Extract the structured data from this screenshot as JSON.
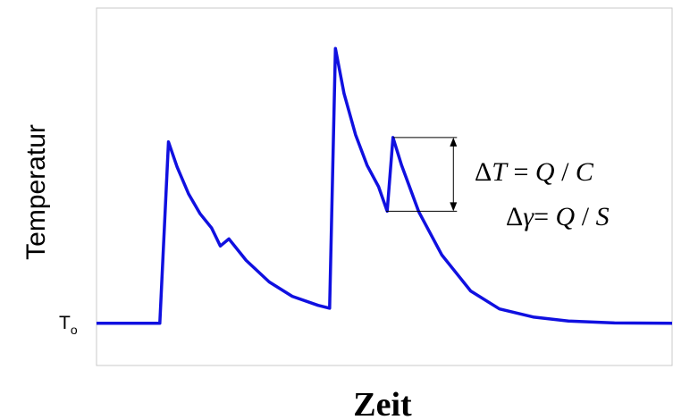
{
  "chart_data": {
    "type": "line",
    "xlabel": "Zeit",
    "ylabel": "Temperatur",
    "y_tick_label": {
      "main": "T",
      "sub": "o"
    },
    "xlim": [
      0,
      1
    ],
    "ylim": [
      0,
      1
    ],
    "grid": false,
    "legend": "none",
    "series": [
      {
        "color": "#1010e0",
        "points": [
          [
            0.0,
            0.12
          ],
          [
            0.11,
            0.12
          ],
          [
            0.125,
            0.625
          ],
          [
            0.14,
            0.555
          ],
          [
            0.16,
            0.48
          ],
          [
            0.18,
            0.425
          ],
          [
            0.2,
            0.385
          ],
          [
            0.215,
            0.335
          ],
          [
            0.23,
            0.355
          ],
          [
            0.26,
            0.295
          ],
          [
            0.3,
            0.235
          ],
          [
            0.34,
            0.195
          ],
          [
            0.385,
            0.17
          ],
          [
            0.405,
            0.162
          ],
          [
            0.415,
            0.885
          ],
          [
            0.43,
            0.76
          ],
          [
            0.45,
            0.645
          ],
          [
            0.47,
            0.56
          ],
          [
            0.49,
            0.5
          ],
          [
            0.505,
            0.432
          ],
          [
            0.515,
            0.637
          ],
          [
            0.53,
            0.56
          ],
          [
            0.56,
            0.43
          ],
          [
            0.6,
            0.31
          ],
          [
            0.65,
            0.21
          ],
          [
            0.7,
            0.16
          ],
          [
            0.76,
            0.137
          ],
          [
            0.82,
            0.126
          ],
          [
            0.9,
            0.121
          ],
          [
            1.0,
            0.12
          ]
        ]
      }
    ],
    "annotations": [
      {
        "type": "bracket",
        "x": 0.62,
        "y_top": 0.637,
        "y_bottom": 0.432,
        "text": [
          "ΔT = Q / C",
          "Δγ= Q / S"
        ]
      }
    ]
  },
  "equations": {
    "line1": {
      "delta": "Δ",
      "var": "T",
      "eq": " = ",
      "num": "Q",
      "div": " / ",
      "den": "C"
    },
    "line2": {
      "delta": "Δ",
      "var": "γ",
      "eq": "= ",
      "num": "Q",
      "div": " / ",
      "den": "S"
    }
  },
  "colors": {
    "curve": "#1010e0",
    "axis": "#c8c8c8"
  }
}
